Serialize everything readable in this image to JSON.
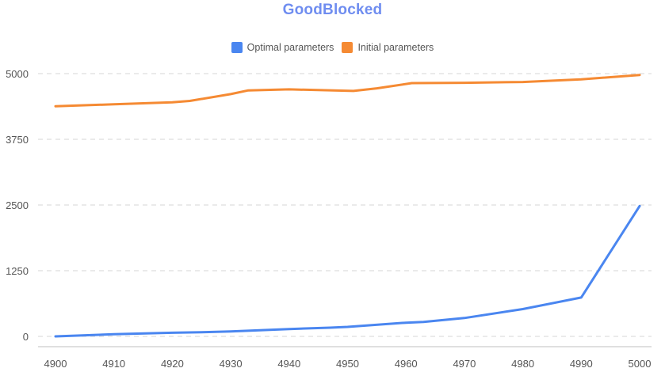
{
  "chart_data": {
    "type": "line",
    "title": "GoodBlocked",
    "legend_position": "top-center",
    "grid": "horizontal dashed",
    "ylim": [
      0,
      5000
    ],
    "xlim": [
      4900,
      5000
    ],
    "y_ticks": [
      "0",
      "1250",
      "2500",
      "3750",
      "5000"
    ],
    "x_ticks": [
      "4900",
      "4910",
      "4920",
      "4930",
      "4940",
      "4950",
      "4960",
      "4970",
      "4980",
      "4990",
      "5000"
    ],
    "series": [
      {
        "name": "Optimal parameters",
        "color": "#4a86f0",
        "points": [
          [
            4900,
            0
          ],
          [
            4910,
            40
          ],
          [
            4920,
            70
          ],
          [
            4925,
            80
          ],
          [
            4930,
            95
          ],
          [
            4940,
            140
          ],
          [
            4947,
            165
          ],
          [
            4950,
            180
          ],
          [
            4960,
            260
          ],
          [
            4963,
            275
          ],
          [
            4970,
            350
          ],
          [
            4980,
            520
          ],
          [
            4990,
            740
          ],
          [
            5000,
            2480
          ]
        ]
      },
      {
        "name": "Initial parameters",
        "color": "#f58a33",
        "points": [
          [
            4900,
            4380
          ],
          [
            4910,
            4415
          ],
          [
            4920,
            4455
          ],
          [
            4923,
            4480
          ],
          [
            4930,
            4610
          ],
          [
            4933,
            4680
          ],
          [
            4940,
            4700
          ],
          [
            4951,
            4670
          ],
          [
            4955,
            4720
          ],
          [
            4961,
            4820
          ],
          [
            4970,
            4825
          ],
          [
            4980,
            4840
          ],
          [
            4990,
            4890
          ],
          [
            5000,
            4975
          ]
        ]
      }
    ]
  }
}
